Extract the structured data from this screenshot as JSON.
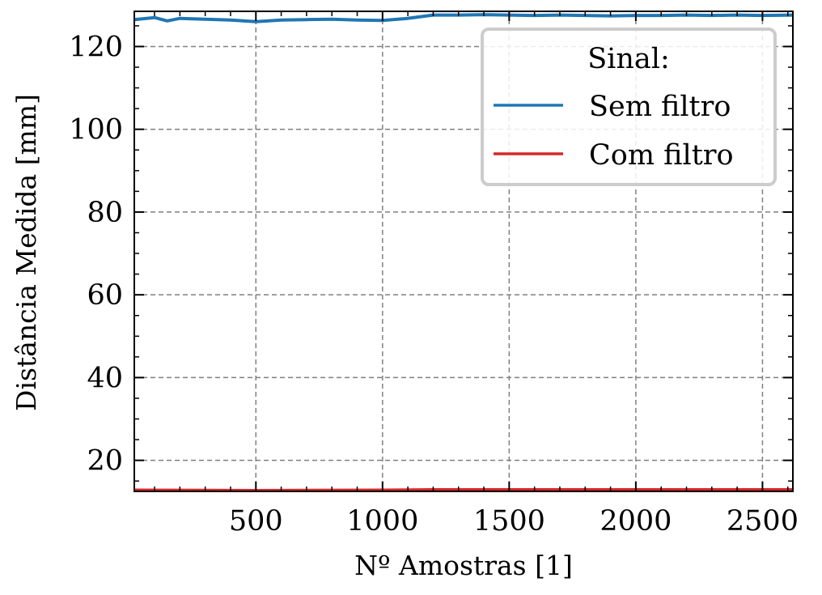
{
  "chart_data": {
    "type": "line",
    "xlabel": "Nº Amostras [1]",
    "ylabel": "Distância Medida [mm]",
    "xlim": [
      20,
      2620
    ],
    "ylim": [
      12.5,
      128.5
    ],
    "x_ticks": [
      500,
      1000,
      1500,
      2000,
      2500
    ],
    "y_ticks": [
      20,
      40,
      60,
      80,
      100,
      120
    ],
    "grid": true,
    "legend": {
      "title": "Sinal:",
      "placement": "top-right"
    },
    "series": [
      {
        "name": "Sem filtro",
        "color": "#1f77b4",
        "x": [
          20,
          100,
          150,
          200,
          300,
          400,
          500,
          600,
          700,
          800,
          900,
          1000,
          1100,
          1150,
          1200,
          1300,
          1400,
          1500,
          1600,
          1700,
          1800,
          1900,
          2000,
          2100,
          2200,
          2300,
          2400,
          2500,
          2620
        ],
        "y": [
          126.5,
          127.0,
          126.2,
          126.8,
          126.6,
          126.4,
          126.0,
          126.4,
          126.5,
          126.6,
          126.4,
          126.3,
          126.8,
          127.2,
          127.6,
          127.6,
          127.7,
          127.6,
          127.5,
          127.6,
          127.5,
          127.4,
          127.5,
          127.5,
          127.6,
          127.5,
          127.6,
          127.5,
          127.6
        ]
      },
      {
        "name": "Com filtro",
        "color": "#d62728",
        "x": [
          20,
          500,
          1000,
          1200,
          1500,
          2000,
          2620
        ],
        "y": [
          12.8,
          12.7,
          12.8,
          12.9,
          12.9,
          12.9,
          12.9
        ]
      }
    ]
  }
}
